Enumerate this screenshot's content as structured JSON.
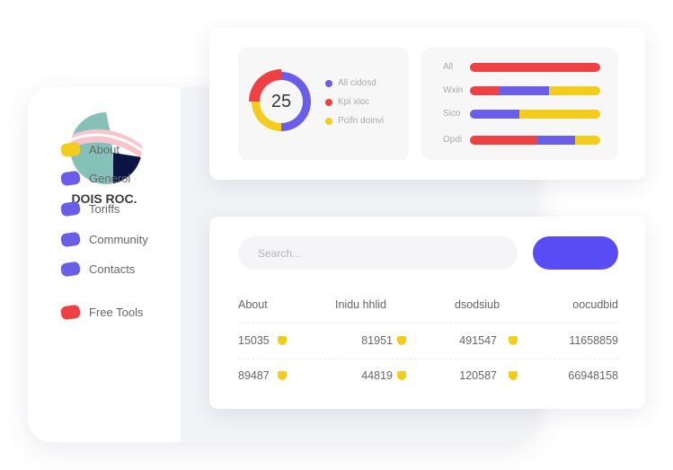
{
  "sidebar": {
    "brand": "DOIS ROC.",
    "items": [
      {
        "label": "About",
        "color": "#f3cd1e"
      },
      {
        "label": "Generol",
        "color": "#6a5ee8"
      },
      {
        "label": "Toriffs",
        "color": "#6a5ee8"
      },
      {
        "label": "Community",
        "color": "#6a5ee8"
      },
      {
        "label": "Contacts",
        "color": "#6a5ee8"
      },
      {
        "label": "Free Tools",
        "color": "#ef4043"
      }
    ]
  },
  "donut": {
    "center": "25",
    "segments": [
      {
        "label": "All cidosd",
        "color": "#6a5ee8",
        "share": 0.5
      },
      {
        "label": "Kpi xioc",
        "color": "#ef4043",
        "share": 0.25
      },
      {
        "label": "Pcifn doinvi",
        "color": "#f3cd1e",
        "share": 0.25
      }
    ]
  },
  "bars": [
    {
      "label": "All",
      "segments": [
        [
          "#ef4043",
          100
        ]
      ]
    },
    {
      "label": "Wxin",
      "segments": [
        [
          "#ef4043",
          23
        ],
        [
          "#6a5ee8",
          38
        ],
        [
          "#f3cd1e",
          39
        ]
      ]
    },
    {
      "label": "Sico",
      "segments": [
        [
          "#6a5ee8",
          38
        ],
        [
          "#f3cd1e",
          62
        ]
      ]
    },
    {
      "label": "Opdi",
      "segments": [
        [
          "#ef4043",
          52
        ],
        [
          "#6a5ee8",
          29
        ],
        [
          "#f3cd1e",
          19
        ]
      ]
    }
  ],
  "search": {
    "placeholder": "Search..."
  },
  "table": {
    "headers": [
      "About",
      "Inidu hhlid",
      "dsodsiub",
      "oocudbid"
    ],
    "rows": [
      [
        "15035",
        "81951",
        "491547",
        "11658859"
      ],
      [
        "89487",
        "44819",
        "120587",
        "66948158"
      ]
    ]
  }
}
